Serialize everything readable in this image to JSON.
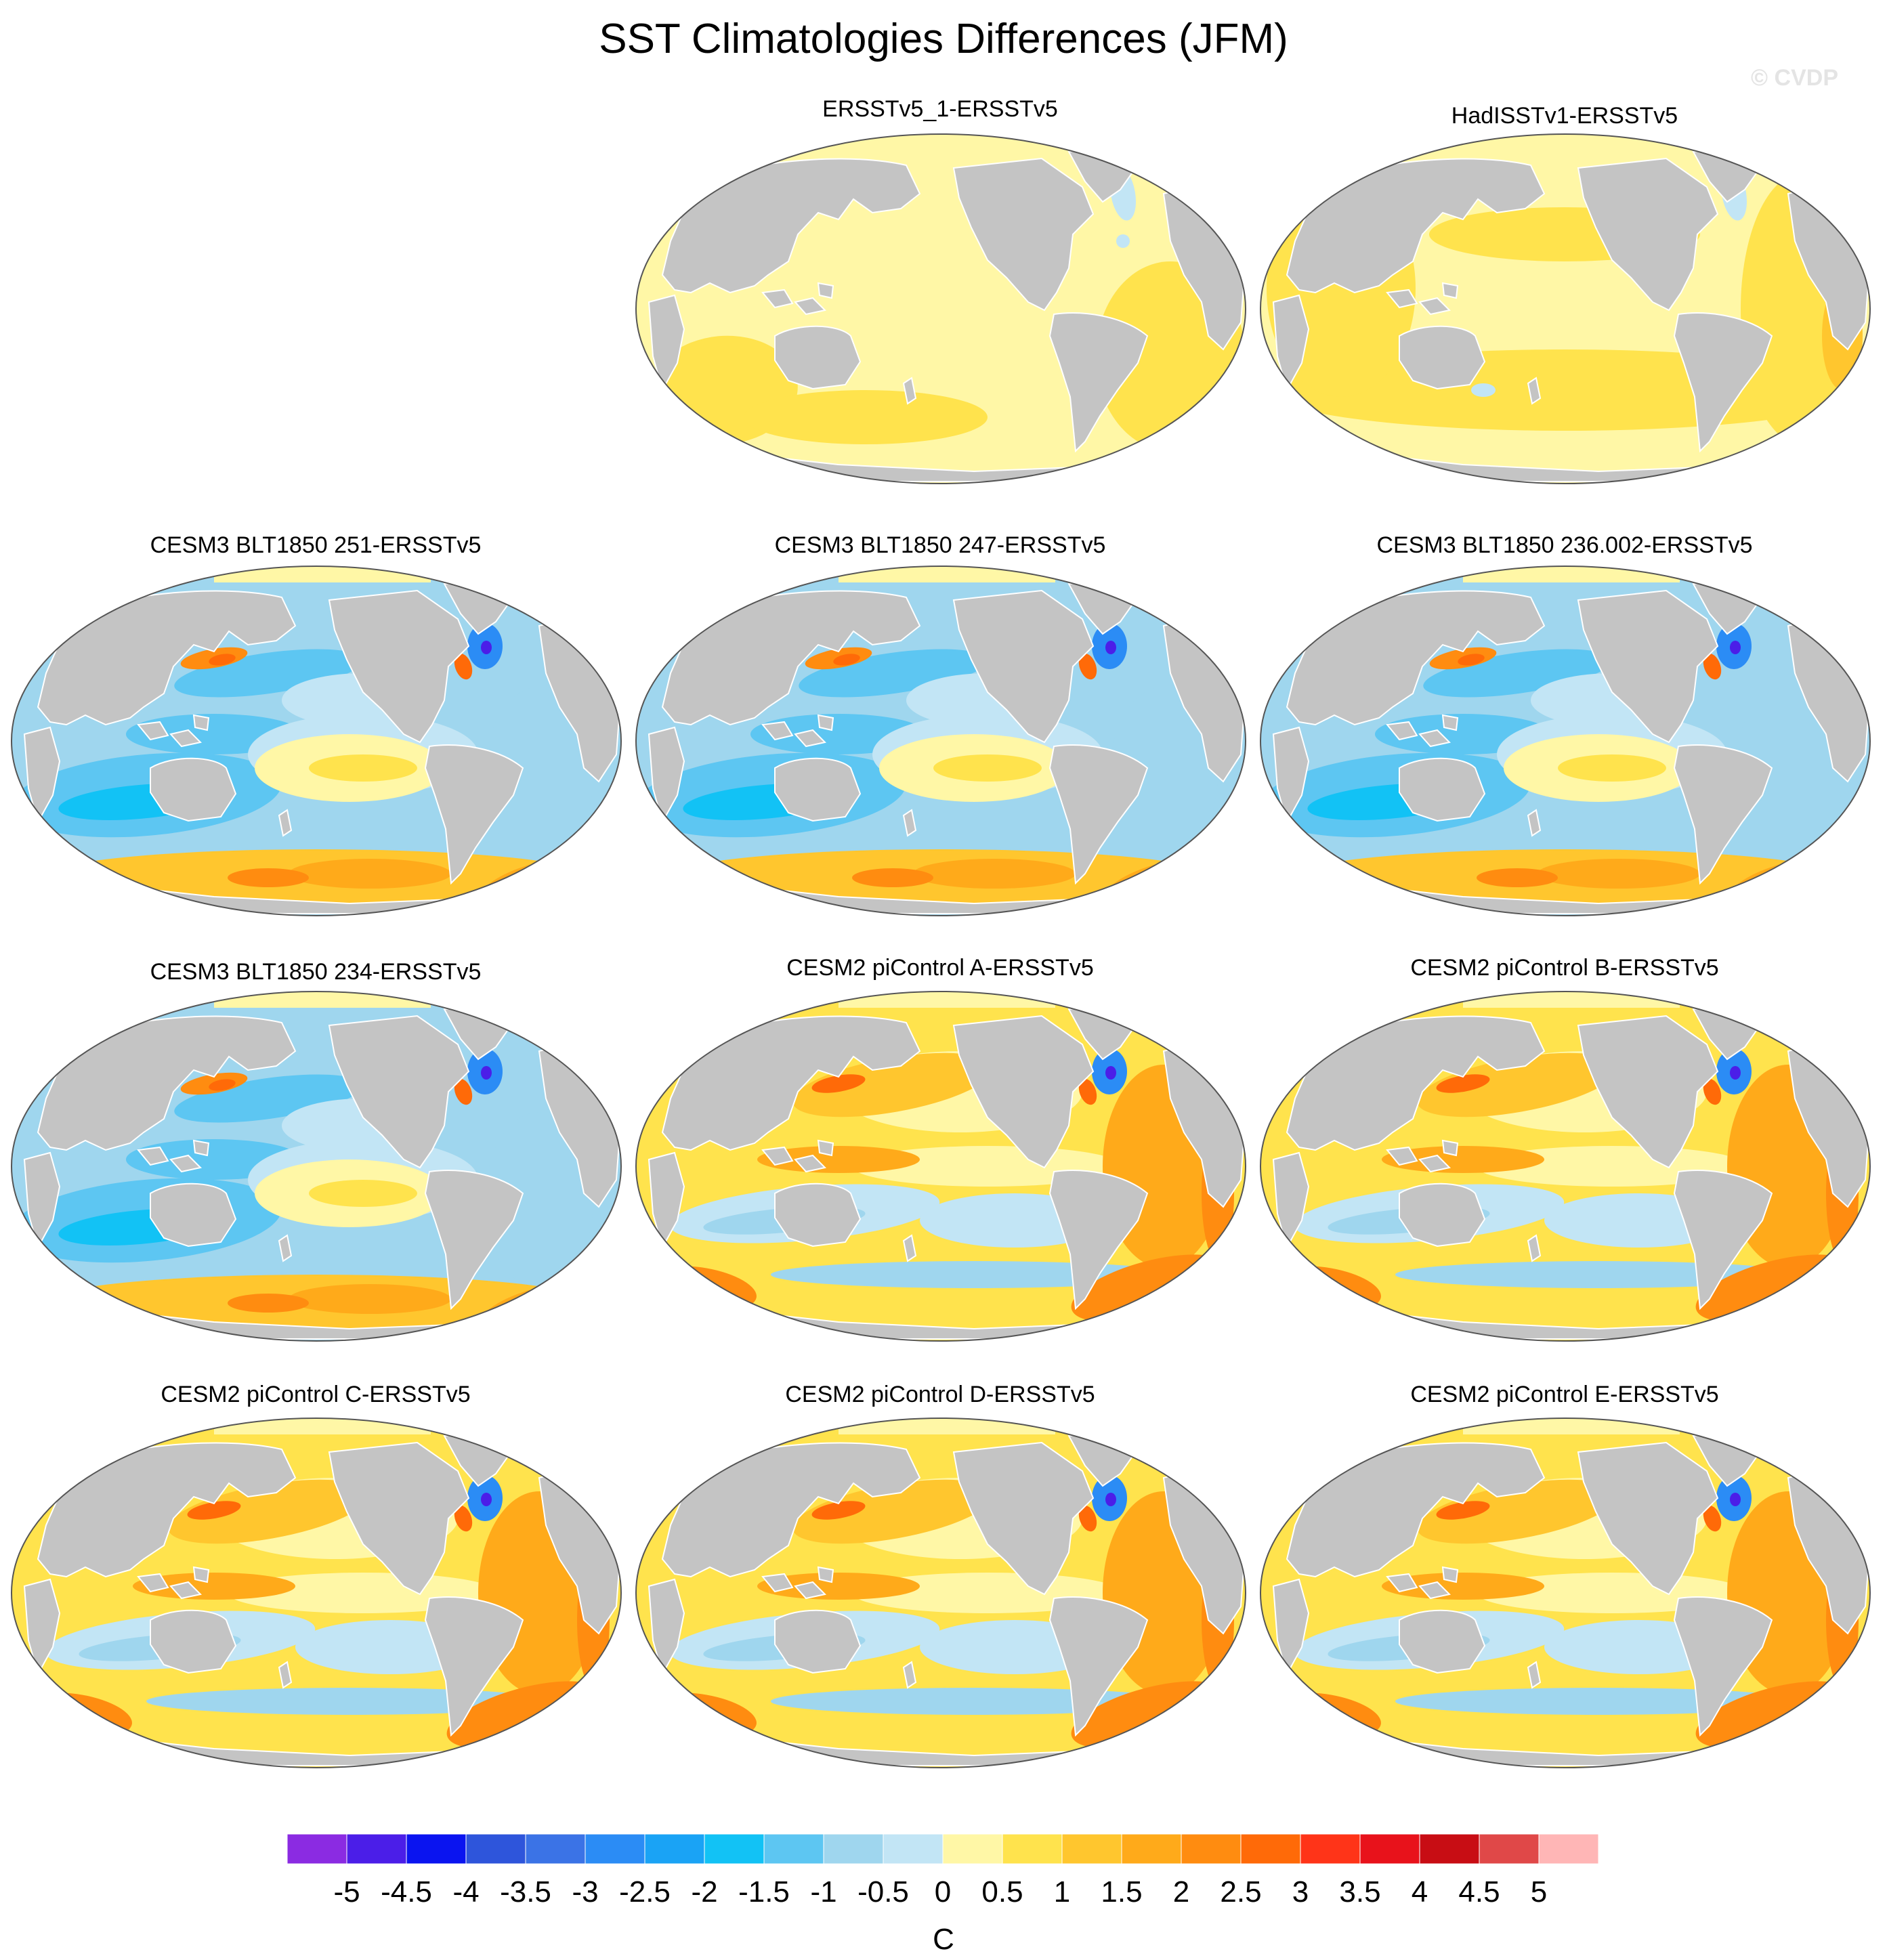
{
  "figure": {
    "title": "SST Climatologies Differences (JFM)",
    "watermark": "© CVDP"
  },
  "colors": {
    "land": "#c4c4c4",
    "land_edge": "#ffffff",
    "outline": "#555555"
  },
  "chart_data": {
    "type": "heatmap",
    "projection": "Robinson / Hammer-style global map panels (Pacific-centred)",
    "variable": "SST climatology difference, JFM",
    "colorbar": {
      "unit_label": "C",
      "levels": [
        -5,
        -4.5,
        -4,
        -3.5,
        -3,
        -2.5,
        -2,
        -1.5,
        -1,
        -0.5,
        0,
        0.5,
        1,
        1.5,
        2,
        2.5,
        3,
        3.5,
        4,
        4.5,
        5
      ],
      "tick_labels": [
        "-5",
        "-4.5",
        "-4",
        "-3.5",
        "-3",
        "-2.5",
        "-2",
        "-1.5",
        "-1",
        "-0.5",
        "0",
        "0.5",
        "1",
        "1.5",
        "2",
        "2.5",
        "3",
        "3.5",
        "4",
        "4.5",
        "5"
      ],
      "colors": [
        "#8b2be2",
        "#4b1ee8",
        "#0a14f0",
        "#2e55db",
        "#3b73e6",
        "#2b8cf5",
        "#1aa3f5",
        "#12c2f5",
        "#5dc6f2",
        "#9fd6ee",
        "#c2e5f5",
        "#fff7a6",
        "#ffe34d",
        "#ffc62e",
        "#ffaa1a",
        "#ff8c10",
        "#ff6a08",
        "#ff3418",
        "#e8121b",
        "#c80d14",
        "#e04848",
        "#ffb6b6"
      ]
    },
    "panels": [
      {
        "title": "ERSSTv5_1-ERSSTv5",
        "pattern": "obs1"
      },
      {
        "title": "HadISSTv1-ERSSTv5",
        "pattern": "obs2"
      },
      {
        "title": "CESM3 BLT1850 251-ERSSTv5",
        "pattern": "cesm3"
      },
      {
        "title": "CESM3 BLT1850 247-ERSSTv5",
        "pattern": "cesm3"
      },
      {
        "title": "CESM3 BLT1850 236.002-ERSSTv5",
        "pattern": "cesm3"
      },
      {
        "title": "CESM3 BLT1850 234-ERSSTv5",
        "pattern": "cesm3"
      },
      {
        "title": "CESM2 piControl A-ERSSTv5",
        "pattern": "cesm2"
      },
      {
        "title": "CESM2 piControl B-ERSSTv5",
        "pattern": "cesm2"
      },
      {
        "title": "CESM2 piControl C-ERSSTv5",
        "pattern": "cesm2"
      },
      {
        "title": "CESM2 piControl D-ERSSTv5",
        "pattern": "cesm2"
      },
      {
        "title": "CESM2 piControl E-ERSSTv5",
        "pattern": "cesm2"
      }
    ]
  }
}
